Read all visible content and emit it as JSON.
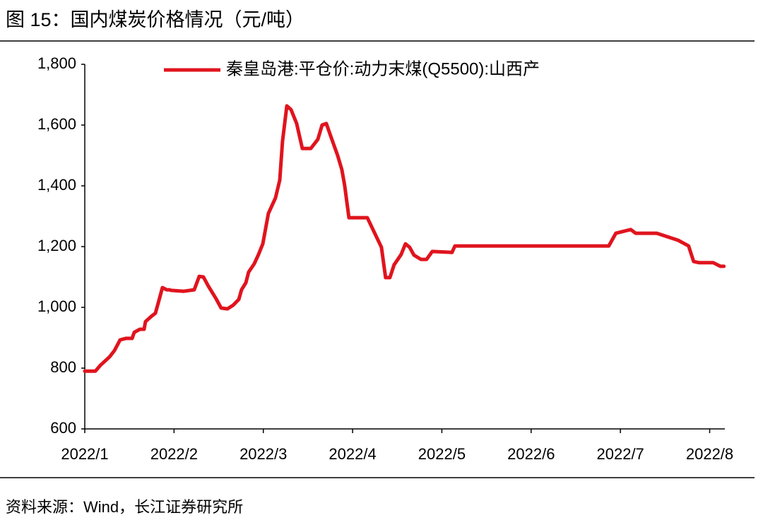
{
  "chart_data": {
    "type": "line",
    "title": "图 15：国内煤炭价格情况（元/吨）",
    "source": "资料来源：Wind，长江证券研究所",
    "xlim": [
      1,
      8.17
    ],
    "xticks": [
      {
        "value": 1,
        "label": "2022/1"
      },
      {
        "value": 2,
        "label": "2022/2"
      },
      {
        "value": 3,
        "label": "2022/3"
      },
      {
        "value": 4,
        "label": "2022/4"
      },
      {
        "value": 5,
        "label": "2022/5"
      },
      {
        "value": 6,
        "label": "2022/6"
      },
      {
        "value": 7,
        "label": "2022/7"
      },
      {
        "value": 8,
        "label": "2022/8"
      }
    ],
    "ylim": [
      600,
      1800
    ],
    "yticks": [
      600,
      800,
      {
        "value": 1000,
        "label": "1,000"
      },
      {
        "value": 1200,
        "label": "1,200"
      },
      {
        "value": 1400,
        "label": "1,400"
      },
      {
        "value": 1600,
        "label": "1,600"
      },
      {
        "value": 1800,
        "label": "1,800"
      }
    ],
    "grid": false,
    "legend": "top",
    "x": [
      1.0,
      1.119,
      1.174,
      1.277,
      1.332,
      1.396,
      1.459,
      1.53,
      1.554,
      1.617,
      1.665,
      1.68,
      1.744,
      1.791,
      1.831,
      1.87,
      1.918,
      1.949,
      1.965,
      2.108,
      2.226,
      2.282,
      2.329,
      2.384,
      2.472,
      2.527,
      2.598,
      2.661,
      2.725,
      2.756,
      2.804,
      2.835,
      2.899,
      2.946,
      2.994,
      3.057,
      3.136,
      3.184,
      3.215,
      3.263,
      3.31,
      3.373,
      3.437,
      3.532,
      3.611,
      3.658,
      3.706,
      3.753,
      3.832,
      3.88,
      3.911,
      3.959,
      4.165,
      4.323,
      4.37,
      4.418,
      4.465,
      4.544,
      4.592,
      4.639,
      4.687,
      4.766,
      4.829,
      4.892,
      5.114,
      5.146,
      6.775,
      6.87,
      6.949,
      7.116,
      7.171,
      7.408,
      7.646,
      7.764,
      7.82,
      7.883,
      8.041,
      8.12,
      8.16
    ],
    "series": [
      {
        "name": "秦皇岛港:平仓价:动力末煤(Q5500):山西产",
        "color": "#e0141e",
        "values": [
          790,
          790,
          809,
          837,
          858,
          893,
          898,
          898,
          918,
          928,
          928,
          953,
          970,
          981,
          1023,
          1065,
          1058,
          1058,
          1056,
          1053,
          1058,
          1102,
          1100,
          1070,
          1028,
          998,
          995,
          1007,
          1026,
          1058,
          1081,
          1116,
          1144,
          1174,
          1209,
          1309,
          1360,
          1419,
          1547,
          1663,
          1651,
          1605,
          1523,
          1523,
          1553,
          1600,
          1605,
          1565,
          1500,
          1453,
          1402,
          1295,
          1295,
          1198,
          1098,
          1098,
          1140,
          1174,
          1209,
          1198,
          1172,
          1158,
          1158,
          1184,
          1181,
          1202,
          1202,
          1202,
          1244,
          1256,
          1244,
          1244,
          1221,
          1202,
          1151,
          1147,
          1147,
          1135,
          1135
        ]
      }
    ]
  }
}
